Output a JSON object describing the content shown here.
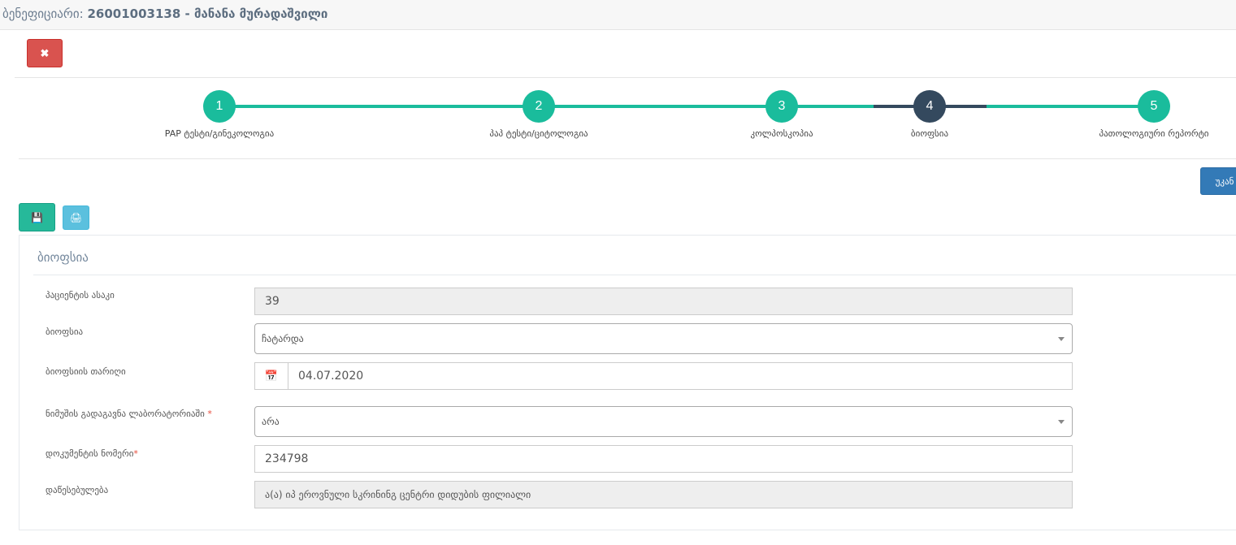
{
  "header": {
    "prefix": "ბენეფიციარი:",
    "id_name": "26001003138 - მანანა მურადაშვილი"
  },
  "close_button": "✖",
  "steps": [
    {
      "number": "1",
      "label": "PAP ტესტი/გინეკოლოგია",
      "state": "done"
    },
    {
      "number": "2",
      "label": "პაპ ტესტი/ციტოლოგია",
      "state": "done"
    },
    {
      "number": "3",
      "label": "კოლპოსკოპია",
      "state": "done"
    },
    {
      "number": "4",
      "label": "ბიოფსია",
      "state": "active"
    },
    {
      "number": "5",
      "label": "პათოლოგიური რეპორტი",
      "state": "done"
    }
  ],
  "back_button": "უკან",
  "colors": {
    "accent": "#1abc9c",
    "active": "#34495e",
    "danger": "#d9534f",
    "primary": "#337ab7",
    "info": "#5bc0de"
  },
  "panel": {
    "title": "ბიოფსია"
  },
  "form": {
    "age_label": "პაციენტის ასაკი",
    "age_value": "39",
    "biopsy_label": "ბიოფსია",
    "biopsy_value": "ჩატარდა",
    "date_label": "ბიოფსიის თარიღი",
    "date_value": "04.07.2020",
    "sent_label": "ნიმუშის გადაგავნა ლაბორატორიაში",
    "sent_value": "არა",
    "doc_label": "დოკუმენტის ნომერი",
    "doc_value": "234798",
    "inst_label": "დაწესებულება",
    "inst_value": "ა(ა) იპ ეროვნული სკრინინგ ცენტრი დიდუბის ფილიალი",
    "required_mark": "*"
  }
}
